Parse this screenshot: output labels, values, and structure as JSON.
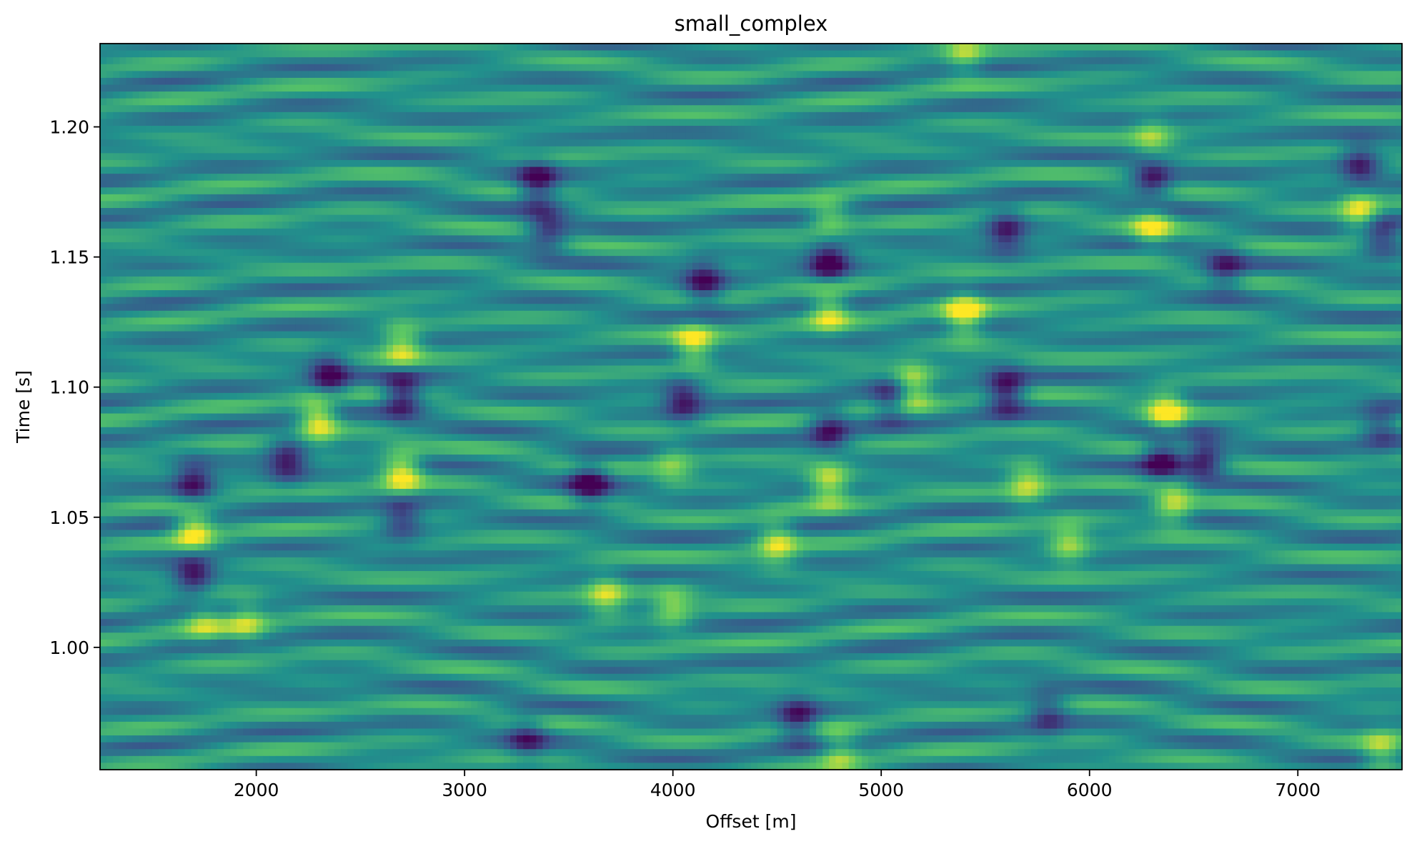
{
  "chart_data": {
    "type": "heatmap",
    "title": "small_complex",
    "xlabel": "Offset [m]",
    "ylabel": "Time [s]",
    "xlim": [
      1250,
      7500
    ],
    "ylim": [
      1.232,
      0.953
    ],
    "y_inverted": true,
    "colormap": "viridis",
    "colormap_stops": [
      "#440154",
      "#3b528b",
      "#21918c",
      "#5ec962",
      "#fde725"
    ],
    "grid": false,
    "x_ticks": [
      2000,
      3000,
      4000,
      5000,
      6000,
      7000
    ],
    "x_tick_labels": [
      "2000",
      "3000",
      "4000",
      "5000",
      "6000",
      "7000"
    ],
    "y_ticks": [
      1.0,
      1.05,
      1.1,
      1.15,
      1.2
    ],
    "y_tick_labels": [
      "1.00",
      "1.05",
      "1.10",
      "1.15",
      "1.20"
    ],
    "value_range": [
      -1,
      1
    ],
    "features": [
      {
        "x": 1700,
        "y": 1.045,
        "amp": 1.0
      },
      {
        "x": 1700,
        "y": 1.028,
        "amp": -0.9
      },
      {
        "x": 1700,
        "y": 1.063,
        "amp": -0.85
      },
      {
        "x": 1750,
        "y": 1.01,
        "amp": 0.55
      },
      {
        "x": 2300,
        "y": 1.088,
        "amp": 1.0
      },
      {
        "x": 2350,
        "y": 1.104,
        "amp": -0.9
      },
      {
        "x": 2150,
        "y": 1.072,
        "amp": -0.8
      },
      {
        "x": 2700,
        "y": 1.067,
        "amp": 1.0
      },
      {
        "x": 2700,
        "y": 1.097,
        "amp": -1.0
      },
      {
        "x": 2700,
        "y": 1.116,
        "amp": 0.8
      },
      {
        "x": 2700,
        "y": 1.05,
        "amp": -0.7
      },
      {
        "x": 3600,
        "y": 1.063,
        "amp": -0.9
      },
      {
        "x": 3680,
        "y": 1.02,
        "amp": 0.7
      },
      {
        "x": 3350,
        "y": 1.178,
        "amp": -0.9
      },
      {
        "x": 3400,
        "y": 1.16,
        "amp": -0.7
      },
      {
        "x": 4100,
        "y": 1.116,
        "amp": 0.85
      },
      {
        "x": 4050,
        "y": 1.095,
        "amp": -0.8
      },
      {
        "x": 4150,
        "y": 1.14,
        "amp": -0.85
      },
      {
        "x": 4000,
        "y": 1.07,
        "amp": 0.5
      },
      {
        "x": 4500,
        "y": 1.04,
        "amp": 0.8
      },
      {
        "x": 4750,
        "y": 1.063,
        "amp": 0.9
      },
      {
        "x": 4750,
        "y": 1.083,
        "amp": -0.8
      },
      {
        "x": 4750,
        "y": 1.13,
        "amp": 0.85
      },
      {
        "x": 4750,
        "y": 1.148,
        "amp": -1.0
      },
      {
        "x": 4750,
        "y": 1.165,
        "amp": 0.6
      },
      {
        "x": 5150,
        "y": 1.1,
        "amp": 0.9
      },
      {
        "x": 5050,
        "y": 1.095,
        "amp": -0.7
      },
      {
        "x": 5400,
        "y": 1.128,
        "amp": 1.0
      },
      {
        "x": 5600,
        "y": 1.098,
        "amp": -1.0
      },
      {
        "x": 5700,
        "y": 1.063,
        "amp": 0.7
      },
      {
        "x": 5900,
        "y": 1.04,
        "amp": 0.7
      },
      {
        "x": 5600,
        "y": 1.16,
        "amp": -0.8
      },
      {
        "x": 6350,
        "y": 1.073,
        "amp": -1.0
      },
      {
        "x": 6550,
        "y": 1.073,
        "amp": -0.9
      },
      {
        "x": 6370,
        "y": 1.09,
        "amp": 1.0
      },
      {
        "x": 6400,
        "y": 1.055,
        "amp": 0.75
      },
      {
        "x": 6300,
        "y": 1.162,
        "amp": 0.75
      },
      {
        "x": 6300,
        "y": 1.18,
        "amp": -0.9
      },
      {
        "x": 6300,
        "y": 1.195,
        "amp": 0.6
      },
      {
        "x": 6650,
        "y": 1.145,
        "amp": -0.7
      },
      {
        "x": 7300,
        "y": 1.168,
        "amp": 0.85
      },
      {
        "x": 7300,
        "y": 1.185,
        "amp": -0.85
      },
      {
        "x": 7400,
        "y": 1.085,
        "amp": -0.6
      },
      {
        "x": 7400,
        "y": 1.158,
        "amp": -0.7
      },
      {
        "x": 4600,
        "y": 0.972,
        "amp": -0.8
      },
      {
        "x": 4800,
        "y": 0.96,
        "amp": 0.6
      },
      {
        "x": 5800,
        "y": 0.975,
        "amp": -0.6
      },
      {
        "x": 3300,
        "y": 0.965,
        "amp": -0.6
      },
      {
        "x": 7400,
        "y": 0.96,
        "amp": 0.65
      },
      {
        "x": 1950,
        "y": 1.01,
        "amp": 0.6
      },
      {
        "x": 4000,
        "y": 1.015,
        "amp": 0.6
      },
      {
        "x": 5400,
        "y": 1.228,
        "amp": 0.6
      }
    ]
  }
}
